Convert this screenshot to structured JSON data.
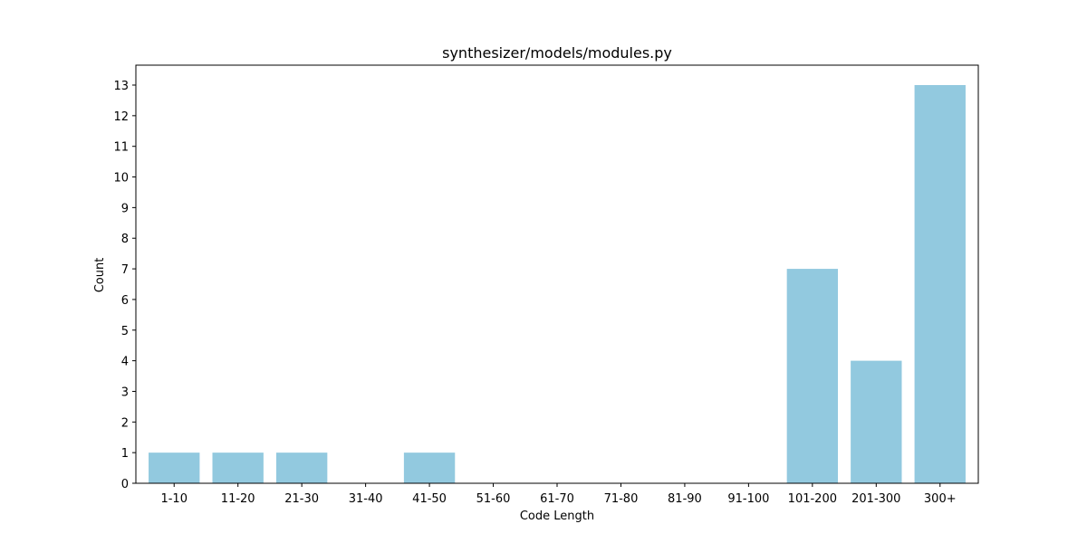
{
  "chart_data": {
    "type": "bar",
    "title": "synthesizer/models/modules.py",
    "xlabel": "Code Length",
    "ylabel": "Count",
    "categories": [
      "1-10",
      "11-20",
      "21-30",
      "31-40",
      "41-50",
      "51-60",
      "61-70",
      "71-80",
      "81-90",
      "91-100",
      "101-200",
      "201-300",
      "300+"
    ],
    "values": [
      1,
      1,
      1,
      0,
      1,
      0,
      0,
      0,
      0,
      0,
      7,
      4,
      13
    ],
    "ylim": [
      0,
      13.65
    ],
    "yticks": [
      0,
      1,
      2,
      3,
      4,
      5,
      6,
      7,
      8,
      9,
      10,
      11,
      12,
      13
    ],
    "grid": false,
    "legend": "none",
    "colors": {
      "bar": "#92c9df",
      "axis": "#000000",
      "background": "#ffffff"
    }
  }
}
